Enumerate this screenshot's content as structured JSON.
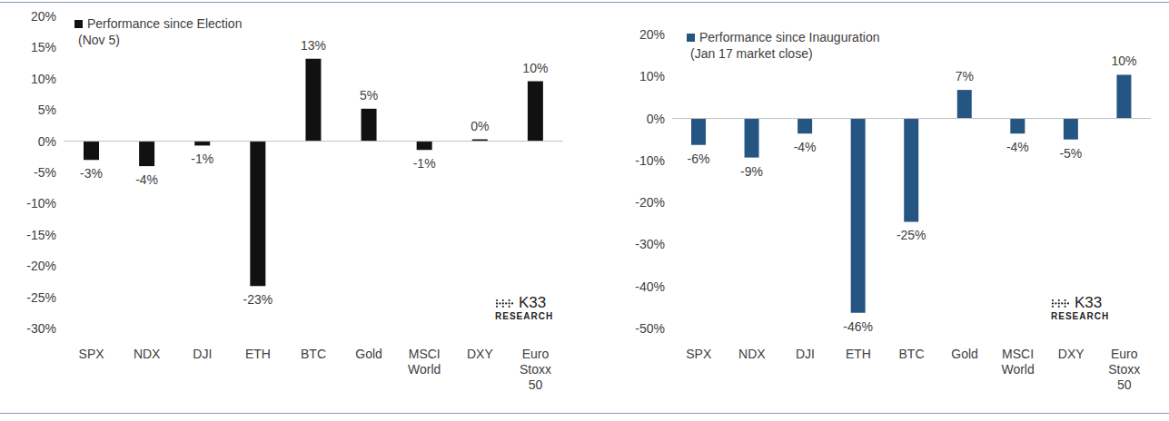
{
  "chart_data": [
    {
      "type": "bar",
      "categories": [
        "SPX",
        "NDX",
        "DJI",
        "ETH",
        "BTC",
        "Gold",
        "MSCI World",
        "DXY",
        "Euro Stoxx 50"
      ],
      "series": [
        {
          "name": "Performance since Election (Nov 5)",
          "color": "#111111",
          "values": [
            -3.0,
            -4.0,
            -0.7,
            -23.2,
            13.2,
            5.2,
            -1.4,
            0.3,
            9.6
          ],
          "value_labels": [
            "-3%",
            "-4%",
            "-1%",
            "-23%",
            "13%",
            "5%",
            "-1%",
            "0%",
            "10%"
          ]
        }
      ],
      "ylim": [
        -30,
        20
      ],
      "yticks": [
        {
          "value": -30,
          "label": "-30%"
        },
        {
          "value": -25,
          "label": "-25%"
        },
        {
          "value": -20,
          "label": "-20%"
        },
        {
          "value": -15,
          "label": "-15%"
        },
        {
          "value": -10,
          "label": "-10%"
        },
        {
          "value": -5,
          "label": "-5%"
        },
        {
          "value": 0,
          "label": "0%"
        },
        {
          "value": 5,
          "label": "5%"
        },
        {
          "value": 10,
          "label": "10%"
        },
        {
          "value": 15,
          "label": "15%"
        },
        {
          "value": 20,
          "label": "20%"
        }
      ],
      "grid": false,
      "legend": "top left",
      "data_labels": true,
      "annotations": [
        "K33",
        "RESEARCH"
      ]
    },
    {
      "type": "bar",
      "categories": [
        "SPX",
        "NDX",
        "DJI",
        "ETH",
        "BTC",
        "Gold",
        "MSCI World",
        "DXY",
        "Euro Stoxx 50"
      ],
      "series": [
        {
          "name": "Performance since Inauguration (Jan 17 market close)",
          "color": "#255583",
          "values": [
            -6.3,
            -9.3,
            -3.6,
            -46.3,
            -24.6,
            6.8,
            -3.6,
            -5.0,
            10.4
          ],
          "value_labels": [
            "-6%",
            "-9%",
            "-4%",
            "-46%",
            "-25%",
            "7%",
            "-4%",
            "-5%",
            "10%"
          ]
        }
      ],
      "ylim": [
        -50,
        20
      ],
      "yticks": [
        {
          "value": -50,
          "label": "-50%"
        },
        {
          "value": -40,
          "label": "-40%"
        },
        {
          "value": -30,
          "label": "-30%"
        },
        {
          "value": -20,
          "label": "-20%"
        },
        {
          "value": -10,
          "label": "-10%"
        },
        {
          "value": 0,
          "label": "0%"
        },
        {
          "value": 10,
          "label": "10%"
        },
        {
          "value": 20,
          "label": "20%"
        }
      ],
      "grid": false,
      "legend": "top left",
      "data_labels": true,
      "annotations": [
        "K33",
        "RESEARCH"
      ]
    }
  ]
}
